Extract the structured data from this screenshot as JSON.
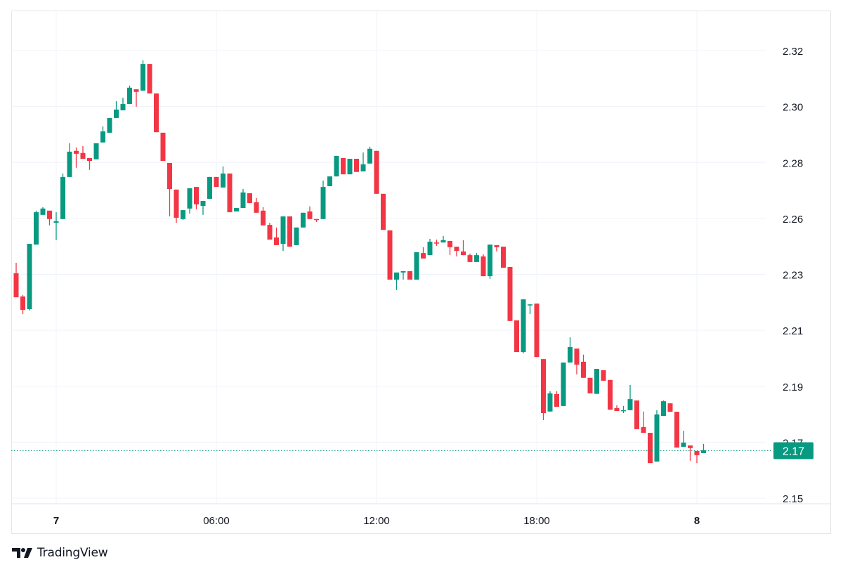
{
  "chart_data": {
    "type": "candlestick",
    "interval": "15m",
    "ylim": [
      2.15,
      2.32
    ],
    "y_ticks": [
      "2.32",
      "2.30",
      "2.28",
      "2.26",
      "2.23",
      "2.21",
      "2.19",
      "2.17",
      "2.15"
    ],
    "x_ticks": [
      {
        "label": "7",
        "time": "7 00:00",
        "bold": true
      },
      {
        "label": "06:00",
        "time": "7 06:00",
        "bold": false
      },
      {
        "label": "12:00",
        "time": "7 12:00",
        "bold": false
      },
      {
        "label": "18:00",
        "time": "7 18:00",
        "bold": false
      },
      {
        "label": "8",
        "time": "8 00:00",
        "bold": true
      }
    ],
    "grid": true,
    "last_price": {
      "value": 2.168,
      "label": "2.17"
    },
    "colors": {
      "up": "#089981",
      "down": "#f23645",
      "grid": "#f0f3fa",
      "axis_text": "#131722"
    },
    "candle_fields": [
      "time",
      "open",
      "high",
      "low",
      "close"
    ],
    "candles": [
      [
        "22:30",
        2.2354,
        2.2394,
        2.2263,
        2.2263
      ],
      [
        "22:45",
        2.2266,
        2.2271,
        2.2199,
        2.2215
      ],
      [
        "23:00",
        2.2218,
        2.2466,
        2.2213,
        2.2466
      ],
      [
        "23:15",
        2.2463,
        2.2592,
        2.2463,
        2.2586
      ],
      [
        "23:30",
        2.2576,
        2.2605,
        2.2576,
        2.26
      ],
      [
        "23:45",
        2.2592,
        2.2592,
        2.2536,
        2.256
      ],
      [
        "00:00",
        2.2546,
        2.2586,
        2.248,
        2.2552
      ],
      [
        "00:15",
        2.256,
        2.2733,
        2.256,
        2.272
      ],
      [
        "00:30",
        2.272,
        2.2848,
        2.272,
        2.2816
      ],
      [
        "00:45",
        2.2819,
        2.2832,
        2.2755,
        2.2808
      ],
      [
        "01:00",
        2.2811,
        2.2837,
        2.2789,
        2.2789
      ],
      [
        "01:15",
        2.2792,
        2.2792,
        2.2747,
        2.2781
      ],
      [
        "01:30",
        2.2787,
        2.2848,
        2.2787,
        2.2848
      ],
      [
        "01:45",
        2.2851,
        2.2912,
        2.2851,
        2.2893
      ],
      [
        "02:00",
        2.2888,
        2.2944,
        2.2888,
        2.2944
      ],
      [
        "02:15",
        2.2944,
        2.3008,
        2.2944,
        2.2976
      ],
      [
        "02:30",
        2.2973,
        2.3021,
        2.2973,
        2.2997
      ],
      [
        "02:45",
        2.2997,
        2.3067,
        2.2997,
        2.3059
      ],
      [
        "03:00",
        2.3053,
        2.3053,
        2.2987,
        2.3043
      ],
      [
        "03:15",
        2.3048,
        2.3163,
        2.3048,
        2.3149
      ],
      [
        "03:30",
        2.3149,
        2.3149,
        2.3037,
        2.3037
      ],
      [
        "03:45",
        2.3037,
        2.3037,
        2.289,
        2.289
      ],
      [
        "04:00",
        2.2888,
        2.2888,
        2.2781,
        2.2781
      ],
      [
        "04:15",
        2.2773,
        2.2773,
        2.257,
        2.2674
      ],
      [
        "04:30",
        2.2672,
        2.2672,
        2.2546,
        2.2565
      ],
      [
        "04:45",
        2.256,
        2.2594,
        2.2557,
        2.2594
      ],
      [
        "05:00",
        2.26,
        2.2677,
        2.2581,
        2.2677
      ],
      [
        "05:15",
        2.2682,
        2.2682,
        2.2597,
        2.2616
      ],
      [
        "05:30",
        2.261,
        2.2629,
        2.2576,
        2.2629
      ],
      [
        "05:45",
        2.2637,
        2.272,
        2.2637,
        2.272
      ],
      [
        "06:00",
        2.272,
        2.272,
        2.2682,
        2.2682
      ],
      [
        "06:15",
        2.268,
        2.276,
        2.268,
        2.2733
      ],
      [
        "06:30",
        2.2733,
        2.2733,
        2.2586,
        2.2586
      ],
      [
        "06:45",
        2.2589,
        2.2602,
        2.2589,
        2.2602
      ],
      [
        "07:00",
        2.2602,
        2.2674,
        2.2602,
        2.2661
      ],
      [
        "07:15",
        2.2658,
        2.2658,
        2.2621,
        2.2621
      ],
      [
        "07:30",
        2.2624,
        2.264,
        2.2584,
        2.2584
      ],
      [
        "07:45",
        2.2592,
        2.2605,
        2.2536,
        2.2536
      ],
      [
        "08:00",
        2.2538,
        2.2546,
        2.2482,
        2.2482
      ],
      [
        "08:15",
        2.249,
        2.2528,
        2.2461,
        2.2461
      ],
      [
        "08:30",
        2.2466,
        2.257,
        2.2439,
        2.257
      ],
      [
        "08:45",
        2.257,
        2.257,
        2.2455,
        2.2455
      ],
      [
        "09:00",
        2.2461,
        2.2528,
        2.2461,
        2.2528
      ],
      [
        "09:15",
        2.2528,
        2.2584,
        2.2528,
        2.2584
      ],
      [
        "09:30",
        2.2589,
        2.2608,
        2.256,
        2.256
      ],
      [
        "09:45",
        2.256,
        2.256,
        2.2549,
        2.2557
      ],
      [
        "10:00",
        2.256,
        2.2706,
        2.256,
        2.2682
      ],
      [
        "10:15",
        2.2685,
        2.2722,
        2.2685,
        2.2722
      ],
      [
        "10:30",
        2.2722,
        2.28,
        2.2722,
        2.28
      ],
      [
        "10:45",
        2.2792,
        2.2792,
        2.273,
        2.273
      ],
      [
        "11:00",
        2.273,
        2.2789,
        2.273,
        2.2789
      ],
      [
        "11:15",
        2.2789,
        2.2789,
        2.2739,
        2.2739
      ],
      [
        "11:30",
        2.2741,
        2.2813,
        2.2741,
        2.2768
      ],
      [
        "11:45",
        2.2771,
        2.2835,
        2.2771,
        2.2827
      ],
      [
        "12:00",
        2.2819,
        2.2819,
        2.2656,
        2.2656
      ],
      [
        "12:15",
        2.2656,
        2.2656,
        2.2519,
        2.2519
      ],
      [
        "12:30",
        2.2517,
        2.2517,
        2.233,
        2.233
      ],
      [
        "12:45",
        2.233,
        2.2357,
        2.229,
        2.2357
      ],
      [
        "13:00",
        2.2357,
        2.2362,
        2.233,
        2.2362
      ],
      [
        "13:15",
        2.2362,
        2.2362,
        2.233,
        2.233
      ],
      [
        "13:30",
        2.233,
        2.2434,
        2.233,
        2.2434
      ],
      [
        "13:45",
        2.2431,
        2.2453,
        2.241,
        2.241
      ],
      [
        "14:00",
        2.2423,
        2.2485,
        2.2423,
        2.2474
      ],
      [
        "14:15",
        2.2471,
        2.2482,
        2.2458,
        2.2469
      ],
      [
        "14:30",
        2.2471,
        2.2496,
        2.2471,
        2.248
      ],
      [
        "14:45",
        2.2477,
        2.2477,
        2.2423,
        2.2453
      ],
      [
        "15:00",
        2.2455,
        2.2455,
        2.2418,
        2.2439
      ],
      [
        "15:15",
        2.2437,
        2.248,
        2.2423,
        2.2423
      ],
      [
        "15:30",
        2.2423,
        2.2429,
        2.2397,
        2.2397
      ],
      [
        "15:45",
        2.2397,
        2.2431,
        2.2397,
        2.2423
      ],
      [
        "16:00",
        2.2418,
        2.2426,
        2.2343,
        2.2343
      ],
      [
        "16:15",
        2.2343,
        2.2463,
        2.2333,
        2.2463
      ],
      [
        "16:30",
        2.2461,
        2.2461,
        2.2437,
        2.2453
      ],
      [
        "16:45",
        2.2455,
        2.2455,
        2.2375,
        2.2375
      ],
      [
        "17:00",
        2.2378,
        2.2378,
        2.2173,
        2.2173
      ],
      [
        "17:15",
        2.2175,
        2.2175,
        2.2055,
        2.2055
      ],
      [
        "17:30",
        2.2055,
        2.2255,
        2.205,
        2.2255
      ],
      [
        "17:45",
        2.2234,
        2.2236,
        2.2199,
        2.2236
      ],
      [
        "18:00",
        2.2239,
        2.2239,
        2.2036,
        2.2036
      ],
      [
        "18:15",
        2.2028,
        2.2028,
        2.1796,
        2.1823
      ],
      [
        "18:30",
        2.1829,
        2.1906,
        2.1829,
        2.1898
      ],
      [
        "18:45",
        2.1895,
        2.1906,
        2.1847,
        2.1847
      ],
      [
        "19:00",
        2.185,
        2.2015,
        2.185,
        2.2015
      ],
      [
        "19:15",
        2.2015,
        2.2111,
        2.2015,
        2.2074
      ],
      [
        "19:30",
        2.2068,
        2.2068,
        2.197,
        2.2007
      ],
      [
        "19:45",
        2.2018,
        2.2045,
        2.1957,
        2.1957
      ],
      [
        "20:00",
        2.1957,
        2.1957,
        2.1898,
        2.1898
      ],
      [
        "20:15",
        2.1896,
        2.1991,
        2.1896,
        2.1991
      ],
      [
        "20:30",
        2.1986,
        2.1986,
        2.1946,
        2.1946
      ],
      [
        "20:45",
        2.1949,
        2.1949,
        2.1836,
        2.1836
      ],
      [
        "21:00",
        2.1842,
        2.1853,
        2.1831,
        2.1831
      ],
      [
        "21:15",
        2.1831,
        2.185,
        2.1823,
        2.1834
      ],
      [
        "21:30",
        2.1834,
        2.193,
        2.1834,
        2.1876
      ],
      [
        "21:45",
        2.1871,
        2.1871,
        2.1762,
        2.1762
      ],
      [
        "22:00",
        2.177,
        2.1829,
        2.1748,
        2.1748
      ],
      [
        "22:15",
        2.1748,
        2.1748,
        2.1633,
        2.1633
      ],
      [
        "22:30",
        2.1639,
        2.1834,
        2.1639,
        2.1818
      ],
      [
        "22:45",
        2.1812,
        2.1871,
        2.1812,
        2.1868
      ],
      [
        "23:00",
        2.186,
        2.186,
        2.1828,
        2.1828
      ],
      [
        "23:15",
        2.1828,
        2.1828,
        2.1692,
        2.1692
      ],
      [
        "23:30",
        2.1695,
        2.1756,
        2.1695,
        2.1711
      ],
      [
        "23:45",
        2.17,
        2.17,
        2.1642,
        2.169
      ],
      [
        "00:00",
        2.1679,
        2.1679,
        2.1633,
        2.1663
      ],
      [
        "00:15",
        2.1671,
        2.1706,
        2.1671,
        2.1682
      ]
    ]
  },
  "branding": {
    "logo_icon": "tradingview-logo-icon",
    "name": "TradingView"
  }
}
